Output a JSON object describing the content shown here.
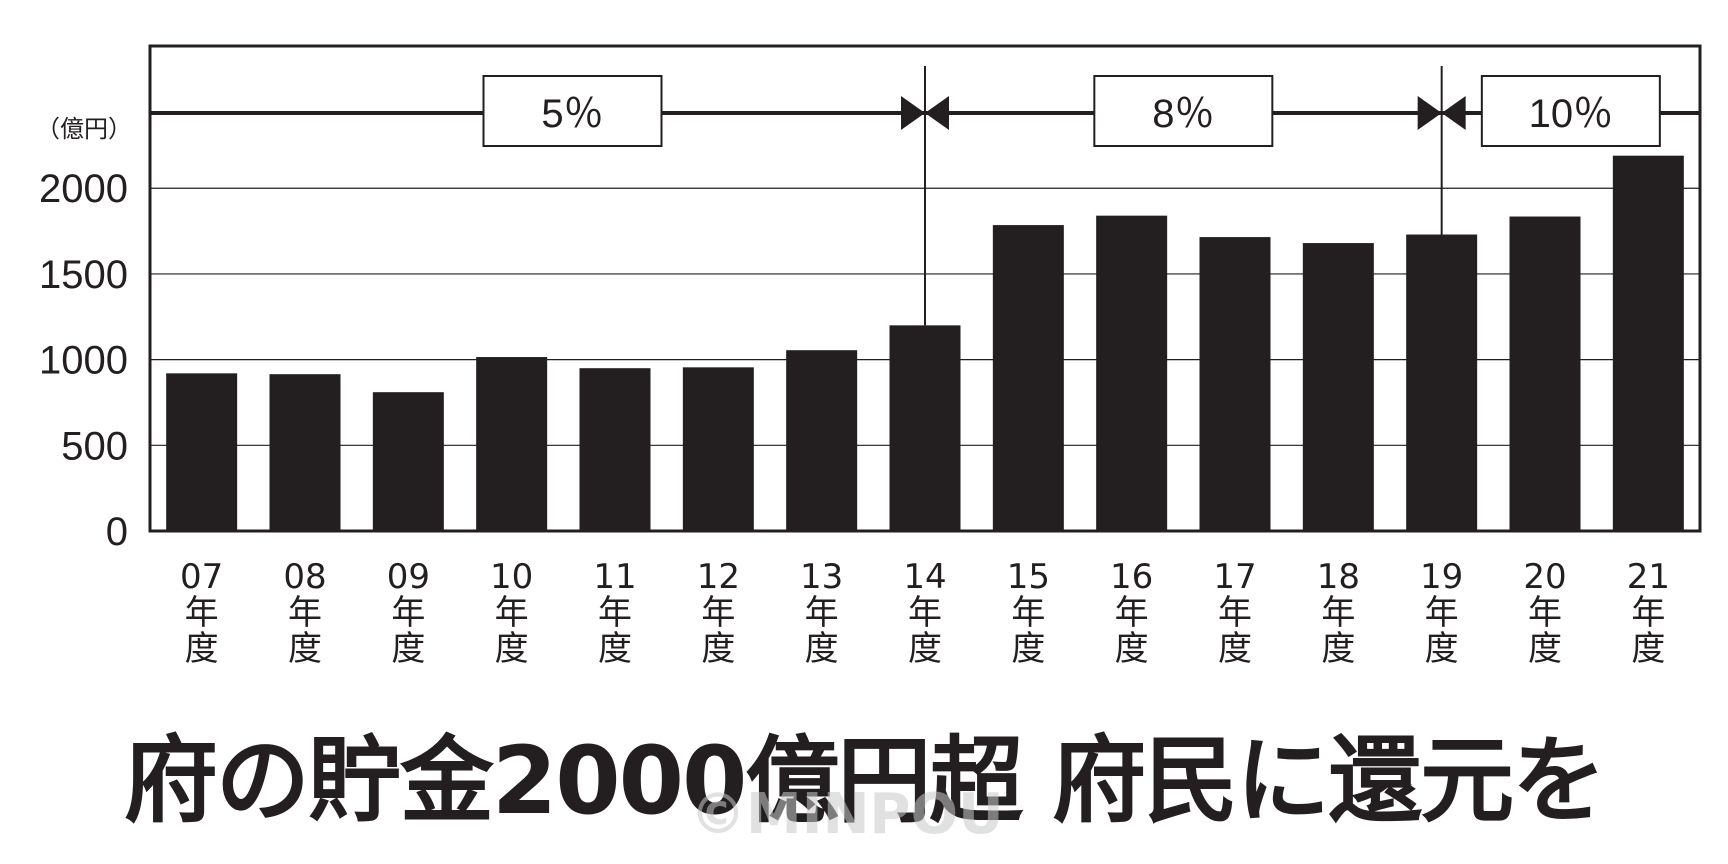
{
  "chart_data": {
    "type": "bar",
    "title": "府の貯金2000億円超 府民に還元を",
    "unit_label": "（億円）",
    "categories": [
      "07\n年\n度",
      "08\n年\n度",
      "09\n年\n度",
      "10\n年\n度",
      "11\n年\n度",
      "12\n年\n度",
      "13\n年\n度",
      "14\n年\n度",
      "15\n年\n度",
      "16\n年\n度",
      "17\n年\n度",
      "18\n年\n度",
      "19\n年\n度",
      "20\n年\n度",
      "21\n年\n度"
    ],
    "values": [
      920,
      915,
      810,
      1015,
      950,
      955,
      1055,
      1200,
      1785,
      1840,
      1715,
      1680,
      1730,
      1835,
      2190
    ],
    "ylim": [
      0,
      2830
    ],
    "yticks": [
      0,
      500,
      1000,
      1500,
      2000
    ],
    "grid": true,
    "bar_color": "#231f20",
    "consumption_tax_periods": [
      {
        "label": "5％",
        "from": "07",
        "to": "14"
      },
      {
        "label": "8％",
        "from": "14",
        "to": "19"
      },
      {
        "label": "10％",
        "from": "19",
        "to": "21"
      }
    ]
  },
  "watermark": "©MINPOU"
}
